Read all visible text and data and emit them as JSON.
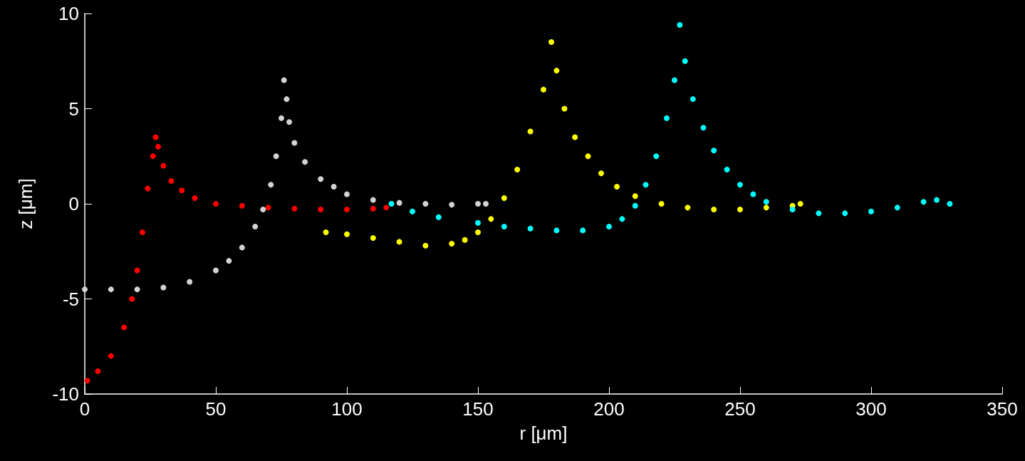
{
  "chart_data": {
    "type": "scatter",
    "xlabel": "r [μm]",
    "ylabel": "z [μm]",
    "xlim": [
      0,
      350
    ],
    "xticks": [
      0,
      50,
      100,
      150,
      200,
      250,
      300,
      350
    ],
    "ylim": [
      -10,
      10
    ],
    "yticks": [
      -10,
      -5,
      0,
      5,
      10
    ],
    "grid": false,
    "marker": "circle",
    "series": [
      {
        "color": "#ff0000",
        "x": [
          1,
          5,
          10,
          15,
          18,
          20,
          22,
          24,
          26,
          27,
          28,
          30,
          33,
          37,
          42,
          50,
          60,
          70,
          80,
          90,
          100,
          110,
          115
        ],
        "values": [
          -9.3,
          -8.8,
          -8,
          -6.5,
          -5,
          -3.5,
          -1.5,
          0.8,
          2.5,
          3.5,
          3,
          2,
          1.2,
          0.7,
          0.3,
          0,
          -0.1,
          -0.2,
          -0.25,
          -0.3,
          -0.3,
          -0.25,
          -0.2
        ]
      },
      {
        "color": "#d3d3d3",
        "x": [
          0,
          10,
          20,
          30,
          40,
          50,
          55,
          60,
          65,
          68,
          71,
          73,
          75,
          76,
          77,
          78,
          80,
          84,
          90,
          95,
          100,
          110,
          120,
          130,
          140,
          150,
          153
        ],
        "values": [
          -4.5,
          -4.5,
          -4.5,
          -4.4,
          -4.1,
          -3.5,
          -3,
          -2.3,
          -1.2,
          -0.3,
          1,
          2.5,
          4.5,
          6.5,
          5.5,
          4.3,
          3.2,
          2.2,
          1.3,
          0.9,
          0.5,
          0.2,
          0.05,
          0,
          -0.05,
          0,
          0
        ]
      },
      {
        "color": "#ffff00",
        "x": [
          92,
          100,
          110,
          120,
          130,
          140,
          145,
          150,
          155,
          160,
          165,
          170,
          175,
          178,
          180,
          183,
          187,
          192,
          197,
          203,
          210,
          220,
          230,
          240,
          250,
          260,
          270,
          273
        ],
        "values": [
          -1.5,
          -1.6,
          -1.8,
          -2,
          -2.2,
          -2.1,
          -1.9,
          -1.5,
          -0.8,
          0.3,
          1.8,
          3.8,
          6,
          8.5,
          7,
          5,
          3.5,
          2.5,
          1.6,
          0.9,
          0.4,
          0,
          -0.2,
          -0.3,
          -0.3,
          -0.2,
          -0.1,
          0
        ]
      },
      {
        "color": "#00ffff",
        "x": [
          117,
          125,
          135,
          150,
          160,
          170,
          180,
          190,
          200,
          205,
          210,
          214,
          218,
          222,
          225,
          227,
          229,
          232,
          236,
          240,
          245,
          250,
          255,
          260,
          270,
          280,
          290,
          300,
          310,
          320,
          325,
          330
        ],
        "values": [
          0,
          -0.4,
          -0.7,
          -1,
          -1.2,
          -1.3,
          -1.4,
          -1.4,
          -1.2,
          -0.8,
          -0.1,
          1,
          2.5,
          4.5,
          6.5,
          9.4,
          7.5,
          5.5,
          4,
          2.8,
          1.8,
          1,
          0.5,
          0.1,
          -0.3,
          -0.5,
          -0.5,
          -0.4,
          -0.2,
          0.1,
          0.2,
          0
        ]
      }
    ]
  }
}
